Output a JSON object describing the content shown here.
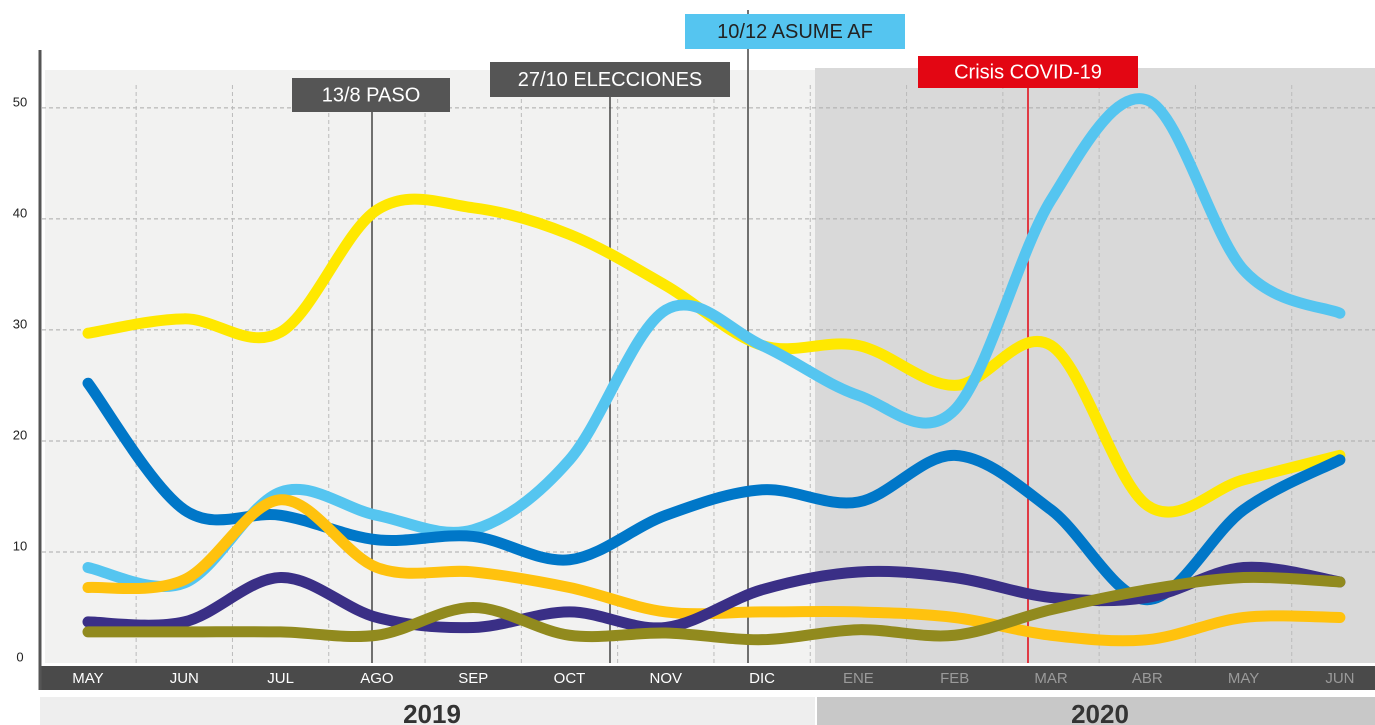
{
  "chart_data": {
    "type": "line",
    "categories": [
      "MAY",
      "JUN",
      "JUL",
      "AGO",
      "SEP",
      "OCT",
      "NOV",
      "DIC",
      "ENE",
      "FEB",
      "MAR",
      "ABR",
      "MAY",
      "JUN"
    ],
    "periods": [
      "2019",
      "2020"
    ],
    "ylim": [
      0,
      53.5
    ],
    "yticks": [
      0,
      10,
      20,
      30,
      40,
      50
    ],
    "grid": true,
    "series": [
      {
        "color": "#ffe800",
        "values": [
          29.7,
          31,
          29.8,
          40.8,
          41,
          38.6,
          34,
          28.6,
          28.6,
          25,
          28.6,
          14.2,
          16.5,
          18.7
        ]
      },
      {
        "color": "#55c5f0",
        "values": [
          8.6,
          7.2,
          15.4,
          13.3,
          12,
          18.3,
          31.8,
          28.6,
          24.1,
          22.8,
          41.7,
          50.7,
          35.4,
          31.5
        ]
      },
      {
        "color": "#0077c8",
        "values": [
          25.2,
          13.8,
          13.3,
          11.1,
          11.4,
          9.3,
          13.3,
          15.6,
          14.5,
          18.7,
          13.8,
          5.7,
          13.8,
          18.3
        ]
      },
      {
        "color": "#ffc20e",
        "values": [
          6.8,
          7.5,
          14.7,
          8.6,
          8.2,
          6.8,
          4.6,
          4.6,
          4.6,
          4.1,
          2.5,
          2.1,
          4.1,
          4.1
        ]
      },
      {
        "color": "#3a2f86",
        "values": [
          3.7,
          3.7,
          7.7,
          4.1,
          3.2,
          4.6,
          3.2,
          6.6,
          8.2,
          7.7,
          5.9,
          5.9,
          8.6,
          7.3
        ]
      },
      {
        "color": "#918a1e",
        "values": [
          2.8,
          2.8,
          2.8,
          2.5,
          5,
          2.5,
          2.7,
          2.1,
          3,
          2.5,
          4.8,
          6.6,
          7.7,
          7.3
        ]
      }
    ],
    "annotations": [
      {
        "text": "13/8  PASO",
        "color": "#555555"
      },
      {
        "text": "27/10  ELECCIONES",
        "color": "#555555"
      },
      {
        "text": "10/12  ASUME AF",
        "color": "#55c5f0"
      },
      {
        "text": "Crisis COVID-19",
        "color": "#e30613"
      }
    ]
  }
}
